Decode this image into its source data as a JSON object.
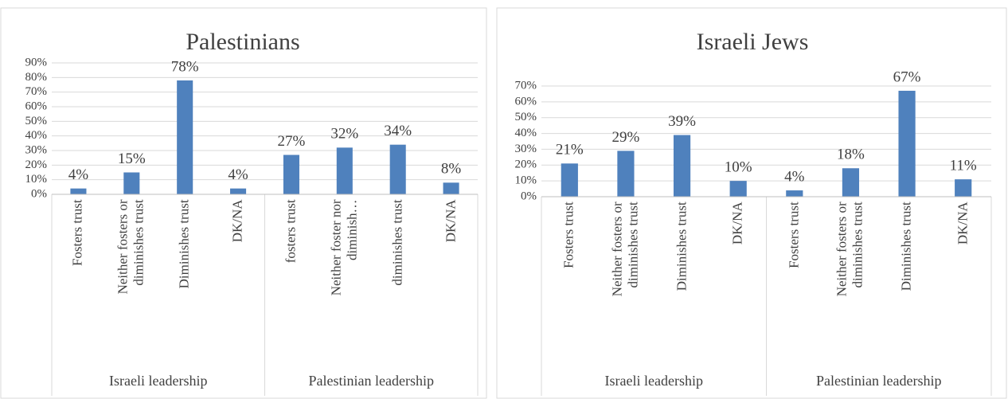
{
  "chart_data": [
    {
      "type": "bar",
      "title": "Palestinians",
      "groups": [
        {
          "label": "Israeli leadership",
          "categories": [
            "Fosters trust",
            "Neither fosters or diminishes trust",
            "Diminishes trust",
            "DK/NA"
          ]
        },
        {
          "label": "Palestinian leadership",
          "categories": [
            "fosters trust",
            "Neither foster nor diminish…",
            "diminishes trust",
            "DK/NA"
          ]
        }
      ],
      "values": [
        4,
        15,
        78,
        4,
        27,
        32,
        34,
        8
      ],
      "value_labels": [
        "4%",
        "15%",
        "78%",
        "4%",
        "27%",
        "32%",
        "34%",
        "8%"
      ],
      "color": "#4f81bd",
      "grid": true,
      "ylim": [
        0,
        90
      ],
      "yticks": [
        {
          "value": 0,
          "label": "0%"
        },
        {
          "value": 10,
          "label": "10%"
        },
        {
          "value": 20,
          "label": "20%"
        },
        {
          "value": 30,
          "label": "30%"
        },
        {
          "value": 40,
          "label": "40%"
        },
        {
          "value": 50,
          "label": "50%"
        },
        {
          "value": 60,
          "label": "60%"
        },
        {
          "value": 70,
          "label": "70%"
        },
        {
          "value": 80,
          "label": "80%"
        },
        {
          "value": 90,
          "label": "90%"
        }
      ]
    },
    {
      "type": "bar",
      "title": "Israeli Jews",
      "groups": [
        {
          "label": "Israeli leadership",
          "categories": [
            "Fosters trust",
            "Neither fosters or diminishes trust",
            "Diminishes trust",
            "DK/NA"
          ]
        },
        {
          "label": "Palestinian leadership",
          "categories": [
            "Fosters trust",
            "Neither fosters or diminishes trust",
            "Diminishes trust",
            "DK/NA"
          ]
        }
      ],
      "values": [
        21,
        29,
        39,
        10,
        4,
        18,
        67,
        11
      ],
      "value_labels": [
        "21%",
        "29%",
        "39%",
        "10%",
        "4%",
        "18%",
        "67%",
        "11%"
      ],
      "color": "#4f81bd",
      "grid": true,
      "ylim": [
        0,
        70
      ],
      "yticks": [
        {
          "value": 0,
          "label": "0%"
        },
        {
          "value": 10,
          "label": "10%"
        },
        {
          "value": 20,
          "label": "20%"
        },
        {
          "value": 30,
          "label": "30%"
        },
        {
          "value": 40,
          "label": "40%"
        },
        {
          "value": 50,
          "label": "50%"
        },
        {
          "value": 60,
          "label": "60%"
        },
        {
          "value": 70,
          "label": "70%"
        }
      ]
    }
  ]
}
